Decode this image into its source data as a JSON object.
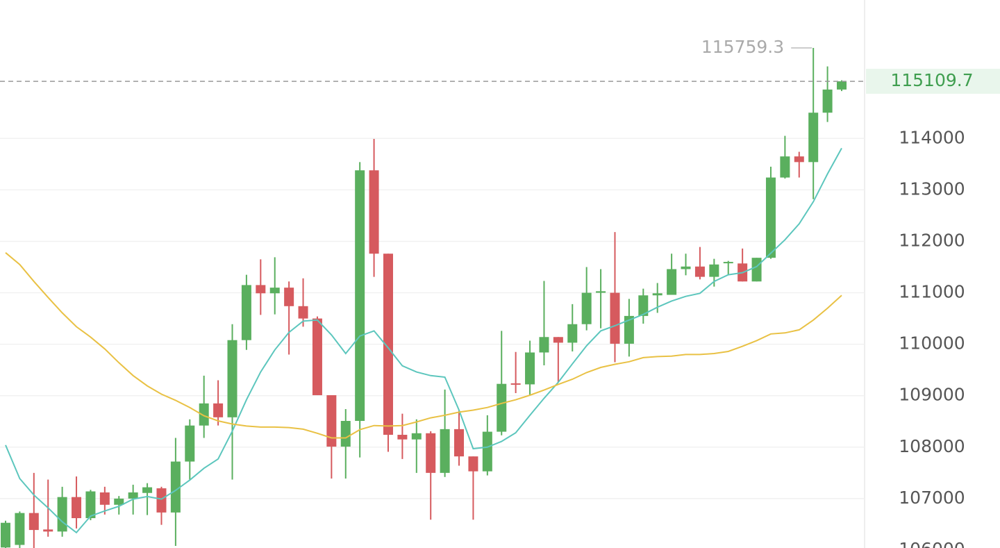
{
  "chart_data": {
    "type": "candlestick",
    "ylim": [
      106040,
      116690
    ],
    "yticks": [
      106000,
      107000,
      108000,
      109000,
      110000,
      111000,
      112000,
      113000,
      114000
    ],
    "grid": true,
    "up_color": "#5aaf5e",
    "down_color": "#d65a5e",
    "open": [
      106050,
      106100,
      106720,
      106400,
      106360,
      107030,
      106620,
      107120,
      106880,
      107000,
      107110,
      107200,
      106730,
      107720,
      108420,
      108850,
      108580,
      110080,
      111150,
      110990,
      111100,
      110740,
      110500,
      109010,
      108010,
      108510,
      113380,
      111760,
      108240,
      108150,
      108270,
      107500,
      108350,
      107820,
      107530,
      108300,
      109240,
      109220,
      109840,
      110140,
      110030,
      110390,
      111000,
      111000,
      110010,
      110550,
      110950,
      110960,
      111460,
      111510,
      111310,
      111580,
      111570,
      111220,
      111680,
      113240,
      113650,
      113540,
      114500,
      114950
    ],
    "high": [
      106570,
      106750,
      107500,
      107370,
      107230,
      107430,
      107170,
      107230,
      107050,
      107270,
      107300,
      107230,
      108180,
      108540,
      109390,
      109300,
      110390,
      111350,
      111650,
      111690,
      111220,
      111280,
      110540,
      109010,
      108740,
      113540,
      113990,
      111760,
      108650,
      108540,
      108310,
      109120,
      108720,
      107820,
      108620,
      110260,
      109850,
      110070,
      111230,
      110140,
      110780,
      111500,
      111460,
      112180,
      110880,
      111080,
      111190,
      111760,
      111760,
      111890,
      111660,
      111620,
      111860,
      111680,
      113450,
      114050,
      113740,
      115759.3,
      115400,
      115130
    ],
    "low": [
      106040,
      106000,
      106000,
      106260,
      106260,
      106420,
      106580,
      106690,
      106690,
      106690,
      106680,
      106490,
      106080,
      107370,
      108180,
      108420,
      107370,
      109890,
      110570,
      110580,
      109800,
      110340,
      109010,
      107390,
      107390,
      107800,
      111310,
      107910,
      107770,
      107500,
      106590,
      107420,
      107640,
      106590,
      107450,
      108230,
      109050,
      109010,
      109590,
      109260,
      109860,
      110270,
      110310,
      109650,
      109760,
      110400,
      110610,
      110960,
      111340,
      111260,
      111120,
      111350,
      111220,
      111220,
      111660,
      113220,
      113240,
      112820,
      114320,
      114920
    ],
    "close": [
      106530,
      106720,
      106390,
      106360,
      107030,
      106620,
      107140,
      106880,
      107000,
      107120,
      107220,
      106730,
      107720,
      108420,
      108850,
      108580,
      110080,
      111150,
      110990,
      111100,
      110740,
      110500,
      109010,
      108010,
      108510,
      113380,
      111760,
      108240,
      108150,
      108270,
      107500,
      108350,
      107820,
      107530,
      108300,
      109230,
      109220,
      109840,
      110140,
      110030,
      110390,
      111000,
      111030,
      110010,
      110550,
      110950,
      110990,
      111460,
      111510,
      111310,
      111550,
      111600,
      111220,
      111680,
      113240,
      113650,
      113540,
      114500,
      114950,
      115109.7
    ],
    "lines": [
      {
        "color": "#5cc6bd",
        "values": [
          108040,
          107390,
          107070,
          106820,
          106550,
          106340,
          106660,
          106760,
          106850,
          106990,
          107040,
          106990,
          107160,
          107360,
          107590,
          107770,
          108310,
          108920,
          109460,
          109890,
          110230,
          110450,
          110470,
          110180,
          109820,
          110160,
          110260,
          109930,
          109580,
          109460,
          109390,
          109360,
          108720,
          107970,
          108000,
          108110,
          108280,
          108620,
          108950,
          109260,
          109620,
          109970,
          110260,
          110360,
          110470,
          110580,
          110720,
          110840,
          110930,
          110990,
          111220,
          111350,
          111390,
          111510,
          111770,
          112030,
          112340,
          112770,
          113310,
          113810
        ]
      },
      {
        "color": "#e9c144",
        "values": [
          111780,
          111550,
          111220,
          110910,
          110610,
          110340,
          110140,
          109910,
          109640,
          109390,
          109190,
          109030,
          108910,
          108770,
          108610,
          108510,
          108450,
          108410,
          108390,
          108390,
          108380,
          108350,
          108270,
          108180,
          108180,
          108340,
          108420,
          108410,
          108420,
          108490,
          108570,
          108620,
          108680,
          108720,
          108770,
          108850,
          108920,
          109010,
          109110,
          109220,
          109320,
          109450,
          109550,
          109610,
          109660,
          109740,
          109760,
          109770,
          109800,
          109800,
          109820,
          109860,
          109960,
          110070,
          110200,
          110220,
          110280,
          110470,
          110700,
          110950
        ]
      }
    ],
    "max_label": {
      "value": 115759.3,
      "index": 57
    },
    "last_price": 115109.7
  }
}
